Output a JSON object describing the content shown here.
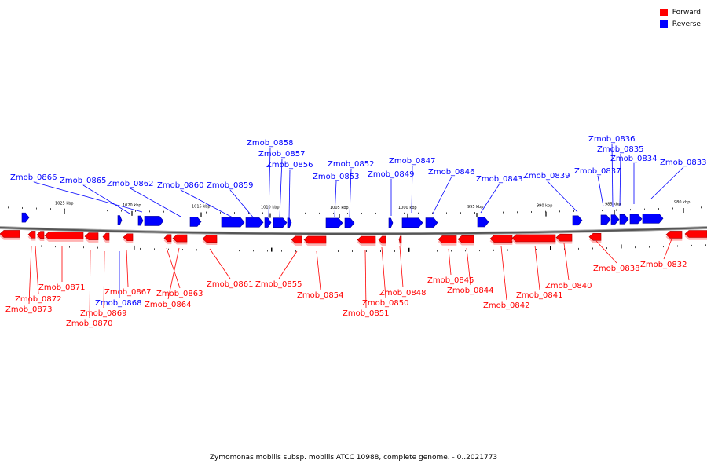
{
  "legend": {
    "forward": {
      "label": "Forward",
      "color": "#ff0000"
    },
    "reverse": {
      "label": "Reverse",
      "color": "#0000ff"
    }
  },
  "caption": "Zymomonas mobilis subsp. mobilis ATCC 10988, complete genome. - 0..2021773",
  "scale_ticks": [
    "1025 kbp",
    "1020 kbp",
    "1015 kbp",
    "1010 kbp",
    "1005 kbp",
    "1000 kbp",
    "995 kbp",
    "990 kbp",
    "985 kbp",
    "980 kbp"
  ],
  "reverse_labels": [
    "Zmob_0866",
    "Zmob_0865",
    "Zmob_0862",
    "Zmob_0860",
    "Zmob_0859",
    "Zmob_0858",
    "Zmob_0857",
    "Zmob_0856",
    "Zmob_0852",
    "Zmob_0853",
    "Zmob_0847",
    "Zmob_0849",
    "Zmob_0846",
    "Zmob_0843",
    "Zmob_0839",
    "Zmob_0836",
    "Zmob_0835",
    "Zmob_0837",
    "Zmob_0834",
    "Zmob_0833",
    "Zmob_0868"
  ],
  "forward_labels": [
    "Zmob_0871",
    "Zmob_0872",
    "Zmob_0873",
    "Zmob_0867",
    "Zmob_0869",
    "Zmob_0870",
    "Zmob_0863",
    "Zmob_0864",
    "Zmob_0861",
    "Zmob_0855",
    "Zmob_0854",
    "Zmob_0848",
    "Zmob_0850",
    "Zmob_0851",
    "Zmob_0845",
    "Zmob_0844",
    "Zmob_0842",
    "Zmob_0841",
    "Zmob_0840",
    "Zmob_0838",
    "Zmob_0832"
  ]
}
